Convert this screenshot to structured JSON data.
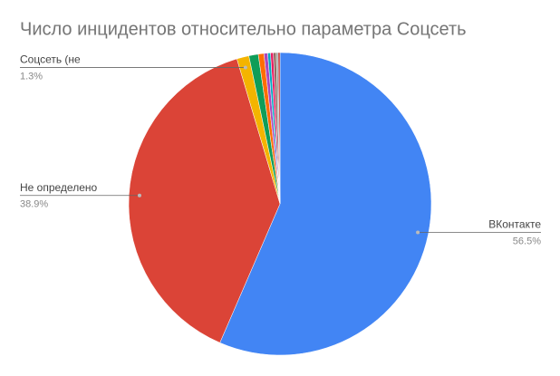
{
  "chart_data": {
    "type": "pie",
    "title": "Число инцидентов относительно параметра Соцсеть",
    "categories": [
      "ВКонтакте",
      "Не определено",
      "Соцсеть (не",
      null,
      null,
      null,
      null,
      null,
      null,
      null,
      null
    ],
    "values": [
      56.5,
      38.9,
      1.3,
      1.0,
      0.6,
      0.4,
      0.3,
      0.3,
      0.3,
      0.2,
      0.2
    ],
    "value_labels": [
      "56.5%",
      "38.9%",
      "1.3%",
      null,
      null,
      null,
      null,
      null,
      null,
      null,
      null
    ],
    "colors": [
      "#4285f4",
      "#db4437",
      "#f4b400",
      "#0f9d58",
      "#ff6d01",
      "#ab47bc",
      "#00acc1",
      "#e91e63",
      "#8d6e63",
      "#9e9e9e",
      "#c62828"
    ]
  }
}
